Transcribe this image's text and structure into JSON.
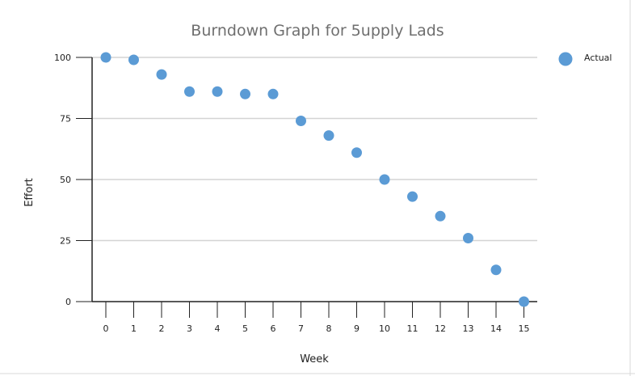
{
  "chart_data": {
    "type": "scatter",
    "title": "Burndown Graph for 5upply Lads",
    "xlabel": "Week",
    "ylabel": "Effort",
    "x": [
      0,
      1,
      2,
      3,
      4,
      5,
      6,
      7,
      8,
      9,
      10,
      11,
      12,
      13,
      14,
      15
    ],
    "xlim": [
      -0.5,
      15.5
    ],
    "ylim": [
      0,
      100
    ],
    "yticks": [
      0,
      25,
      50,
      75,
      100
    ],
    "grid": true,
    "legend_position": "top-right",
    "series": [
      {
        "name": "Actual",
        "color": "#5b9bd5",
        "values": [
          100,
          99,
          93,
          86,
          86,
          85,
          85,
          74,
          68,
          61,
          50,
          43,
          35,
          26,
          13,
          0
        ]
      }
    ]
  }
}
